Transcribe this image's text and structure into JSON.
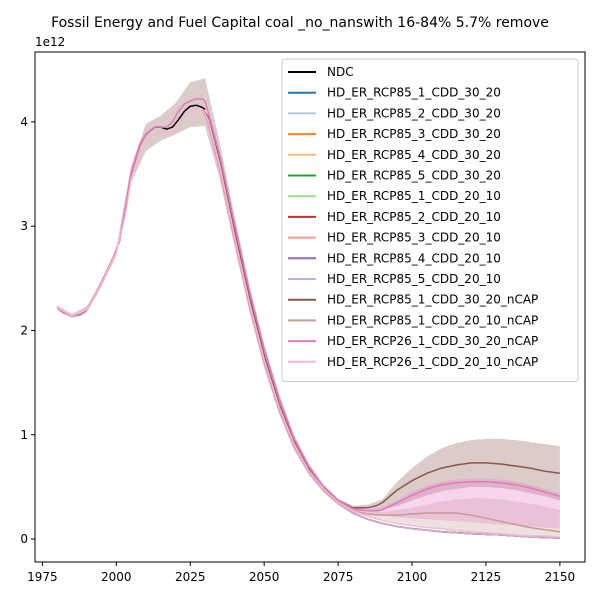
{
  "chart_data": {
    "type": "line",
    "title": "Fossil Energy and Fuel Capital coal _no_nanswith 16-84% 5.7% remove",
    "xlabel": "",
    "ylabel": "",
    "y_scale_label": "1e12",
    "xlim": [
      1972.5,
      2158.5
    ],
    "ylim": [
      -0.22,
      4.67
    ],
    "x_ticks": [
      1975,
      2000,
      2025,
      2050,
      2075,
      2100,
      2125,
      2150
    ],
    "y_ticks": [
      0,
      1,
      2,
      3,
      4
    ],
    "grid": false,
    "legend_position": "top-right",
    "series": [
      {
        "name": "NDC",
        "color": "#000000",
        "x": [
          1980,
          1982,
          1985,
          1988,
          1990,
          1993,
          1996,
          1999,
          2001,
          2003,
          2005,
          2008,
          2010,
          2013,
          2015,
          2017,
          2019,
          2021,
          2023,
          2025,
          2027,
          2029,
          2030
        ],
        "y": [
          2.22,
          2.17,
          2.14,
          2.15,
          2.2,
          2.35,
          2.52,
          2.7,
          2.85,
          3.15,
          3.5,
          3.78,
          3.88,
          3.95,
          3.95,
          3.93,
          3.95,
          4.02,
          4.1,
          4.15,
          4.16,
          4.14,
          4.12
        ]
      },
      {
        "name": "HD_ER_RCP85_1_CDD_30_20",
        "color": "#1f77b4",
        "x": [
          2029,
          2031,
          2035,
          2040,
          2045,
          2050,
          2055,
          2060,
          2065,
          2070,
          2075,
          2080,
          2085,
          2090,
          2095,
          2100,
          2110,
          2120,
          2130,
          2140,
          2150
        ],
        "y": [
          4.12,
          4.0,
          3.55,
          2.88,
          2.25,
          1.7,
          1.25,
          0.9,
          0.65,
          0.47,
          0.34,
          0.25,
          0.19,
          0.15,
          0.12,
          0.1,
          0.07,
          0.05,
          0.04,
          0.02,
          0.01
        ]
      },
      {
        "name": "HD_ER_RCP85_2_CDD_30_20",
        "color": "#aec7e8",
        "x": [
          2029,
          2031,
          2035,
          2040,
          2045,
          2050,
          2055,
          2060,
          2065,
          2070,
          2075,
          2080,
          2085,
          2090,
          2095,
          2100,
          2110,
          2120,
          2130,
          2140,
          2150
        ],
        "y": [
          4.12,
          4.0,
          3.55,
          2.88,
          2.25,
          1.7,
          1.25,
          0.9,
          0.65,
          0.47,
          0.34,
          0.25,
          0.19,
          0.15,
          0.12,
          0.1,
          0.07,
          0.05,
          0.04,
          0.02,
          0.01
        ]
      },
      {
        "name": "HD_ER_RCP85_3_CDD_30_20",
        "color": "#ff7f0e",
        "x": [
          2029,
          2031,
          2035,
          2040,
          2045,
          2050,
          2055,
          2060,
          2065,
          2070,
          2075,
          2080,
          2085,
          2090,
          2095,
          2100,
          2110,
          2120,
          2130,
          2140,
          2150
        ],
        "y": [
          4.12,
          4.0,
          3.55,
          2.88,
          2.25,
          1.7,
          1.25,
          0.9,
          0.65,
          0.47,
          0.34,
          0.25,
          0.19,
          0.15,
          0.12,
          0.1,
          0.07,
          0.05,
          0.04,
          0.02,
          0.01
        ]
      },
      {
        "name": "HD_ER_RCP85_4_CDD_30_20",
        "color": "#ffbb78",
        "x": [
          2029,
          2031,
          2035,
          2040,
          2045,
          2050,
          2055,
          2060,
          2065,
          2070,
          2075,
          2080,
          2085,
          2090,
          2095,
          2100,
          2110,
          2120,
          2130,
          2140,
          2150
        ],
        "y": [
          4.12,
          4.0,
          3.55,
          2.88,
          2.25,
          1.7,
          1.25,
          0.9,
          0.65,
          0.47,
          0.34,
          0.25,
          0.19,
          0.15,
          0.12,
          0.1,
          0.07,
          0.05,
          0.04,
          0.02,
          0.01
        ]
      },
      {
        "name": "HD_ER_RCP85_5_CDD_30_20",
        "color": "#2ca02c",
        "x": [
          2029,
          2031,
          2035,
          2040,
          2045,
          2050,
          2055,
          2060,
          2065,
          2070,
          2075,
          2080,
          2085,
          2090,
          2095,
          2100,
          2110,
          2120,
          2130,
          2140,
          2150
        ],
        "y": [
          4.12,
          4.0,
          3.55,
          2.88,
          2.25,
          1.7,
          1.25,
          0.9,
          0.65,
          0.47,
          0.34,
          0.25,
          0.19,
          0.15,
          0.12,
          0.1,
          0.07,
          0.05,
          0.04,
          0.02,
          0.01
        ]
      },
      {
        "name": "HD_ER_RCP85_1_CDD_20_10",
        "color": "#98df8a",
        "x": [
          2029,
          2031,
          2035,
          2040,
          2045,
          2050,
          2055,
          2060,
          2065,
          2070,
          2075,
          2080,
          2085,
          2090,
          2095,
          2100,
          2110,
          2120,
          2130,
          2140,
          2150
        ],
        "y": [
          4.12,
          4.0,
          3.55,
          2.88,
          2.25,
          1.7,
          1.25,
          0.9,
          0.65,
          0.47,
          0.34,
          0.25,
          0.19,
          0.15,
          0.12,
          0.1,
          0.07,
          0.05,
          0.04,
          0.02,
          0.01
        ]
      },
      {
        "name": "HD_ER_RCP85_2_CDD_20_10",
        "color": "#d62728",
        "x": [
          2029,
          2031,
          2035,
          2040,
          2045,
          2050,
          2055,
          2060,
          2065,
          2070,
          2075,
          2080,
          2085,
          2090,
          2095,
          2100,
          2110,
          2120,
          2130,
          2140,
          2150
        ],
        "y": [
          4.12,
          4.0,
          3.55,
          2.88,
          2.25,
          1.7,
          1.25,
          0.9,
          0.65,
          0.47,
          0.34,
          0.25,
          0.19,
          0.15,
          0.12,
          0.1,
          0.07,
          0.05,
          0.04,
          0.02,
          0.01
        ]
      },
      {
        "name": "HD_ER_RCP85_3_CDD_20_10",
        "color": "#ff9896",
        "x": [
          2029,
          2031,
          2035,
          2040,
          2045,
          2050,
          2055,
          2060,
          2065,
          2070,
          2075,
          2080,
          2085,
          2090,
          2095,
          2100,
          2110,
          2120,
          2130,
          2140,
          2150
        ],
        "y": [
          4.12,
          4.0,
          3.55,
          2.88,
          2.25,
          1.7,
          1.25,
          0.9,
          0.65,
          0.47,
          0.34,
          0.25,
          0.19,
          0.15,
          0.12,
          0.1,
          0.07,
          0.05,
          0.04,
          0.02,
          0.01
        ]
      },
      {
        "name": "HD_ER_RCP85_4_CDD_20_10",
        "color": "#9467bd",
        "x": [
          2029,
          2031,
          2035,
          2040,
          2045,
          2050,
          2055,
          2060,
          2065,
          2070,
          2075,
          2080,
          2085,
          2090,
          2095,
          2100,
          2110,
          2120,
          2130,
          2140,
          2150
        ],
        "y": [
          4.12,
          4.0,
          3.55,
          2.88,
          2.25,
          1.7,
          1.25,
          0.9,
          0.65,
          0.47,
          0.34,
          0.25,
          0.19,
          0.15,
          0.12,
          0.1,
          0.07,
          0.05,
          0.04,
          0.02,
          0.01
        ]
      },
      {
        "name": "HD_ER_RCP85_5_CDD_20_10",
        "color": "#c5b0d5",
        "x": [
          2029,
          2031,
          2035,
          2040,
          2045,
          2050,
          2055,
          2060,
          2065,
          2070,
          2075,
          2080,
          2085,
          2090,
          2095,
          2100,
          2110,
          2120,
          2130,
          2140,
          2150
        ],
        "y": [
          4.12,
          4.0,
          3.55,
          2.88,
          2.25,
          1.7,
          1.25,
          0.9,
          0.65,
          0.47,
          0.34,
          0.25,
          0.19,
          0.15,
          0.12,
          0.1,
          0.07,
          0.05,
          0.04,
          0.02,
          0.01
        ]
      },
      {
        "name": "HD_ER_RCP85_1_CDD_30_20_nCAP",
        "color": "#8c564b",
        "x": [
          2029,
          2031,
          2035,
          2040,
          2045,
          2050,
          2055,
          2060,
          2065,
          2070,
          2075,
          2080,
          2085,
          2088,
          2090,
          2095,
          2100,
          2105,
          2110,
          2115,
          2120,
          2125,
          2130,
          2135,
          2140,
          2145,
          2150
        ],
        "y": [
          4.12,
          4.05,
          3.62,
          2.95,
          2.32,
          1.76,
          1.3,
          0.94,
          0.68,
          0.5,
          0.37,
          0.3,
          0.3,
          0.32,
          0.35,
          0.47,
          0.56,
          0.63,
          0.68,
          0.71,
          0.73,
          0.73,
          0.72,
          0.7,
          0.68,
          0.65,
          0.63
        ]
      },
      {
        "name": "HD_ER_RCP85_1_CDD_20_10_nCAP",
        "color": "#c49c94",
        "x": [
          2029,
          2031,
          2035,
          2040,
          2045,
          2050,
          2055,
          2060,
          2065,
          2070,
          2075,
          2080,
          2085,
          2090,
          2095,
          2100,
          2105,
          2110,
          2115,
          2120,
          2125,
          2130,
          2135,
          2140,
          2145,
          2150
        ],
        "y": [
          4.12,
          4.03,
          3.58,
          2.9,
          2.27,
          1.72,
          1.27,
          0.92,
          0.66,
          0.48,
          0.35,
          0.27,
          0.24,
          0.23,
          0.23,
          0.24,
          0.25,
          0.25,
          0.25,
          0.23,
          0.2,
          0.17,
          0.14,
          0.11,
          0.09,
          0.07
        ]
      },
      {
        "name": "HD_ER_RCP26_1_CDD_30_20_nCAP",
        "color": "#e377c2",
        "x": [
          1980,
          1982,
          1985,
          1988,
          1990,
          1993,
          1996,
          1999,
          2001,
          2003,
          2005,
          2008,
          2010,
          2013,
          2015,
          2017,
          2019,
          2021,
          2023,
          2025,
          2027,
          2029,
          2030,
          2031,
          2035,
          2040,
          2045,
          2050,
          2055,
          2060,
          2065,
          2070,
          2075,
          2080,
          2085,
          2088,
          2090,
          2095,
          2100,
          2105,
          2110,
          2115,
          2120,
          2125,
          2130,
          2135,
          2140,
          2145,
          2150
        ],
        "y": [
          2.22,
          2.17,
          2.14,
          2.15,
          2.2,
          2.35,
          2.52,
          2.7,
          2.85,
          3.15,
          3.5,
          3.78,
          3.88,
          3.95,
          3.95,
          3.95,
          4.0,
          4.1,
          4.17,
          4.2,
          4.22,
          4.22,
          4.2,
          4.1,
          3.68,
          3.02,
          2.38,
          1.82,
          1.35,
          0.97,
          0.7,
          0.5,
          0.37,
          0.29,
          0.27,
          0.27,
          0.28,
          0.35,
          0.42,
          0.48,
          0.52,
          0.54,
          0.55,
          0.55,
          0.54,
          0.52,
          0.49,
          0.45,
          0.41
        ]
      },
      {
        "name": "HD_ER_RCP26_1_CDD_20_10_nCAP",
        "color": "#f7b6d2",
        "x": [
          1980,
          1985,
          1990,
          1995,
          2000,
          2003,
          2005,
          2008,
          2010,
          2013,
          2015,
          2017,
          2019,
          2021,
          2023,
          2025,
          2027,
          2029,
          2031,
          2035,
          2040,
          2045,
          2050,
          2055,
          2060,
          2065,
          2070,
          2075,
          2080,
          2085,
          2090,
          2095,
          2100,
          2105,
          2110,
          2115,
          2120,
          2125,
          2130,
          2135,
          2140,
          2145,
          2150
        ],
        "y": [
          2.22,
          2.14,
          2.2,
          2.45,
          2.75,
          3.1,
          3.45,
          3.72,
          3.82,
          3.88,
          3.9,
          3.88,
          3.9,
          3.98,
          4.05,
          4.1,
          4.12,
          4.12,
          4.02,
          3.58,
          2.9,
          2.27,
          1.72,
          1.27,
          0.92,
          0.66,
          0.48,
          0.35,
          0.27,
          0.22,
          0.18,
          0.15,
          0.13,
          0.11,
          0.1,
          0.08,
          0.07,
          0.06,
          0.05,
          0.04,
          0.03,
          0.03,
          0.02
        ]
      }
    ],
    "bands": [
      {
        "color": "#8c564b",
        "opacity": 0.3,
        "x": [
          1980,
          1985,
          1990,
          1995,
          2000,
          2005,
          2010,
          2015,
          2020,
          2025,
          2030,
          2035,
          2040,
          2045,
          2050,
          2055,
          2060,
          2065,
          2070,
          2075,
          2080,
          2085,
          2090,
          2095,
          2100,
          2105,
          2110,
          2115,
          2120,
          2125,
          2130,
          2135,
          2140,
          2145,
          2150
        ],
        "upper": [
          2.24,
          2.16,
          2.23,
          2.48,
          2.79,
          3.58,
          3.98,
          4.06,
          4.18,
          4.38,
          4.42,
          3.8,
          3.1,
          2.44,
          1.87,
          1.4,
          1.01,
          0.73,
          0.53,
          0.39,
          0.32,
          0.33,
          0.38,
          0.55,
          0.68,
          0.79,
          0.87,
          0.92,
          0.95,
          0.96,
          0.96,
          0.95,
          0.93,
          0.91,
          0.89
        ],
        "lower": [
          2.2,
          2.12,
          2.17,
          2.42,
          2.71,
          3.42,
          3.72,
          3.82,
          3.88,
          3.95,
          3.96,
          3.45,
          2.8,
          2.18,
          1.64,
          1.2,
          0.86,
          0.62,
          0.45,
          0.33,
          0.27,
          0.27,
          0.28,
          0.32,
          0.37,
          0.42,
          0.46,
          0.48,
          0.5,
          0.5,
          0.49,
          0.47,
          0.44,
          0.41,
          0.37
        ]
      },
      {
        "color": "#c49c94",
        "opacity": 0.3,
        "x": [
          2080,
          2085,
          2090,
          2095,
          2100,
          2105,
          2110,
          2115,
          2120,
          2125,
          2130,
          2135,
          2140,
          2145,
          2150
        ],
        "upper": [
          0.28,
          0.26,
          0.26,
          0.28,
          0.3,
          0.33,
          0.36,
          0.38,
          0.39,
          0.39,
          0.38,
          0.36,
          0.34,
          0.31,
          0.28
        ],
        "lower": [
          0.25,
          0.22,
          0.19,
          0.16,
          0.14,
          0.12,
          0.1,
          0.09,
          0.07,
          0.05,
          0.04,
          0.03,
          0.02,
          0.01,
          0.0
        ]
      },
      {
        "color": "#e377c2",
        "opacity": 0.3,
        "x": [
          2080,
          2085,
          2090,
          2095,
          2100,
          2105,
          2110,
          2115,
          2120,
          2125,
          2130,
          2135,
          2140,
          2145,
          2150
        ],
        "upper": [
          0.29,
          0.28,
          0.3,
          0.37,
          0.45,
          0.51,
          0.55,
          0.57,
          0.58,
          0.58,
          0.57,
          0.55,
          0.52,
          0.48,
          0.44
        ],
        "lower": [
          0.27,
          0.25,
          0.23,
          0.21,
          0.2,
          0.19,
          0.18,
          0.17,
          0.16,
          0.15,
          0.14,
          0.13,
          0.12,
          0.11,
          0.1
        ]
      }
    ]
  }
}
